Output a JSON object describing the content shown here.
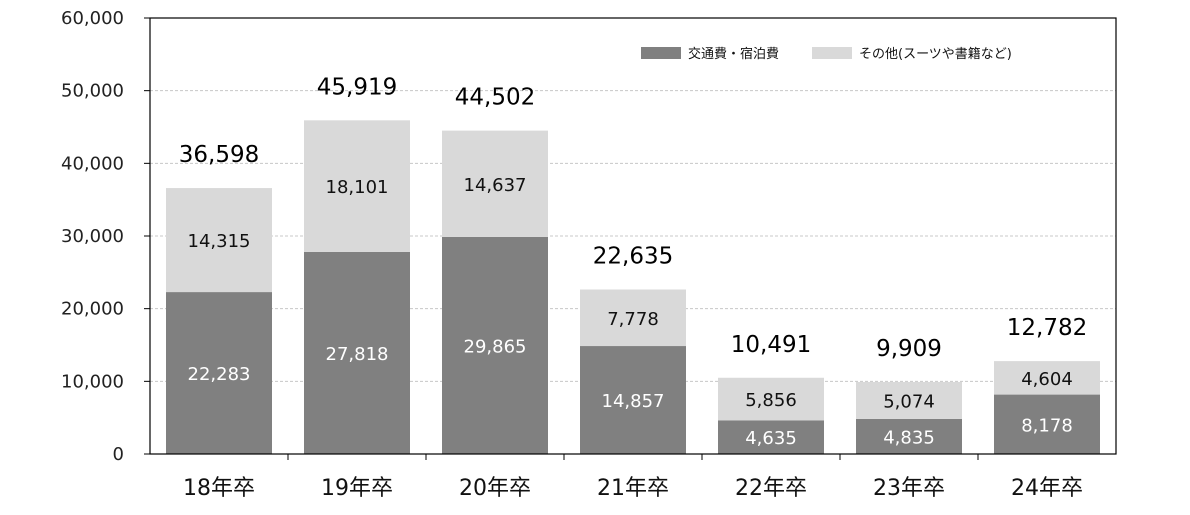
{
  "chart_data": {
    "type": "bar",
    "stacked": true,
    "categories": [
      "18年卒",
      "19年卒",
      "20年卒",
      "21年卒",
      "22年卒",
      "23年卒",
      "24年卒"
    ],
    "series": [
      {
        "name": "交通費・宿泊費",
        "color": "#808080",
        "values": [
          22283,
          27818,
          29865,
          14857,
          4635,
          4835,
          8178
        ],
        "labels": [
          "22,283",
          "27,818",
          "29,865",
          "14,857",
          "4,635",
          "4,835",
          "8,178"
        ]
      },
      {
        "name": "その他(スーツや書籍など)",
        "color": "#d9d9d9",
        "values": [
          14315,
          18101,
          14637,
          7778,
          5856,
          5074,
          4604
        ],
        "labels": [
          "14,315",
          "18,101",
          "14,637",
          "7,778",
          "5,856",
          "5,074",
          "4,604"
        ]
      }
    ],
    "totals": [
      36598,
      45919,
      44502,
      22635,
      10491,
      9909,
      12782
    ],
    "total_labels": [
      "36,598",
      "45,919",
      "44,502",
      "22,635",
      "10,491",
      "9,909",
      "12,782"
    ],
    "ylim": [
      0,
      60000
    ],
    "yticks": [
      0,
      10000,
      20000,
      30000,
      40000,
      50000,
      60000
    ],
    "ytick_labels": [
      "0",
      "10,000",
      "20,000",
      "30,000",
      "40,000",
      "50,000",
      "60,000"
    ],
    "grid": true,
    "legend_position": "top-right"
  }
}
